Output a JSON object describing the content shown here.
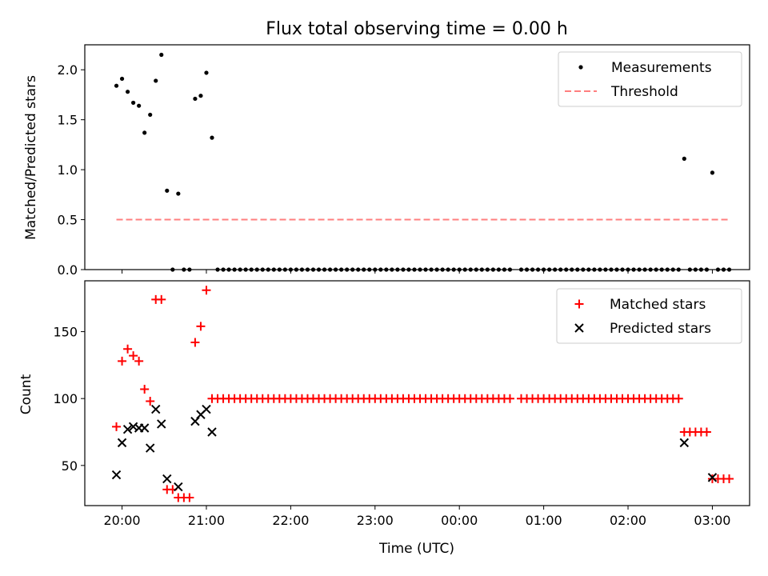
{
  "chart_data": [
    {
      "type": "scatter",
      "title": "Flux total observing time = 0.00 h",
      "xlabel": "",
      "ylabel": "Matched/Predicted stars",
      "ylim": [
        0,
        2.25
      ],
      "yticks": [
        "0.0",
        "0.5",
        "1.0",
        "1.5",
        "2.0"
      ],
      "legend_position": "top-right",
      "series": [
        {
          "name": "Measurements",
          "kind": "dot",
          "color": "#000000",
          "points": [
            [
              -4,
              1.84
            ],
            [
              0,
              1.91
            ],
            [
              4,
              1.78
            ],
            [
              8,
              1.67
            ],
            [
              12,
              1.64
            ],
            [
              16,
              1.37
            ],
            [
              20,
              1.55
            ],
            [
              24,
              1.89
            ],
            [
              28,
              2.15
            ],
            [
              32,
              0.79
            ],
            [
              36,
              0.0
            ],
            [
              40,
              0.76
            ],
            [
              44,
              0.0
            ],
            [
              48,
              0.0
            ],
            [
              52,
              1.71
            ],
            [
              56,
              1.74
            ],
            [
              60,
              1.97
            ],
            [
              64,
              1.32
            ],
            [
              68,
              0.0
            ],
            [
              72,
              0.0
            ],
            [
              76,
              0.0
            ],
            [
              80,
              0.0
            ],
            [
              84,
              0.0
            ],
            [
              88,
              0.0
            ],
            [
              92,
              0.0
            ],
            [
              96,
              0.0
            ],
            [
              100,
              0.0
            ],
            [
              104,
              0.0
            ],
            [
              108,
              0.0
            ],
            [
              112,
              0.0
            ],
            [
              116,
              0.0
            ],
            [
              120,
              0.0
            ],
            [
              124,
              0.0
            ],
            [
              128,
              0.0
            ],
            [
              132,
              0.0
            ],
            [
              136,
              0.0
            ],
            [
              140,
              0.0
            ],
            [
              144,
              0.0
            ],
            [
              148,
              0.0
            ],
            [
              152,
              0.0
            ],
            [
              156,
              0.0
            ],
            [
              160,
              0.0
            ],
            [
              164,
              0.0
            ],
            [
              168,
              0.0
            ],
            [
              172,
              0.0
            ],
            [
              176,
              0.0
            ],
            [
              180,
              0.0
            ],
            [
              184,
              0.0
            ],
            [
              188,
              0.0
            ],
            [
              192,
              0.0
            ],
            [
              196,
              0.0
            ],
            [
              200,
              0.0
            ],
            [
              204,
              0.0
            ],
            [
              208,
              0.0
            ],
            [
              212,
              0.0
            ],
            [
              216,
              0.0
            ],
            [
              220,
              0.0
            ],
            [
              224,
              0.0
            ],
            [
              228,
              0.0
            ],
            [
              232,
              0.0
            ],
            [
              236,
              0.0
            ],
            [
              240,
              0.0
            ],
            [
              244,
              0.0
            ],
            [
              248,
              0.0
            ],
            [
              252,
              0.0
            ],
            [
              256,
              0.0
            ],
            [
              260,
              0.0
            ],
            [
              264,
              0.0
            ],
            [
              268,
              0.0
            ],
            [
              272,
              0.0
            ],
            [
              276,
              0.0
            ],
            [
              284,
              0.0
            ],
            [
              288,
              0.0
            ],
            [
              292,
              0.0
            ],
            [
              296,
              0.0
            ],
            [
              300,
              0.0
            ],
            [
              304,
              0.0
            ],
            [
              308,
              0.0
            ],
            [
              312,
              0.0
            ],
            [
              316,
              0.0
            ],
            [
              320,
              0.0
            ],
            [
              324,
              0.0
            ],
            [
              328,
              0.0
            ],
            [
              332,
              0.0
            ],
            [
              336,
              0.0
            ],
            [
              340,
              0.0
            ],
            [
              344,
              0.0
            ],
            [
              348,
              0.0
            ],
            [
              352,
              0.0
            ],
            [
              356,
              0.0
            ],
            [
              360,
              0.0
            ],
            [
              364,
              0.0
            ],
            [
              368,
              0.0
            ],
            [
              372,
              0.0
            ],
            [
              376,
              0.0
            ],
            [
              380,
              0.0
            ],
            [
              384,
              0.0
            ],
            [
              388,
              0.0
            ],
            [
              392,
              0.0
            ],
            [
              396,
              0.0
            ],
            [
              400,
              1.11
            ],
            [
              404,
              0.0
            ],
            [
              408,
              0.0
            ],
            [
              412,
              0.0
            ],
            [
              416,
              0.0
            ],
            [
              420,
              0.97
            ],
            [
              424,
              0.0
            ],
            [
              428,
              0.0
            ],
            [
              432,
              0.0
            ]
          ]
        },
        {
          "name": "Threshold",
          "kind": "dashed-line",
          "color": "#ff7f7f",
          "points": [
            [
              -4,
              0.5
            ],
            [
              432,
              0.5
            ]
          ]
        }
      ]
    },
    {
      "type": "scatter",
      "title": "",
      "xlabel": "Time (UTC)",
      "ylabel": "Count",
      "ylim": [
        20,
        188
      ],
      "yticks": [
        "50",
        "100",
        "150"
      ],
      "xticks": [
        "20:00",
        "21:00",
        "22:00",
        "23:00",
        "00:00",
        "01:00",
        "02:00",
        "03:00"
      ],
      "x_unit": "minutes after 20:00 UTC",
      "legend_position": "top-right",
      "series": [
        {
          "name": "Matched stars",
          "kind": "plus",
          "color": "#ff0000",
          "points": [
            [
              -4,
              79
            ],
            [
              0,
              128
            ],
            [
              4,
              137
            ],
            [
              8,
              132
            ],
            [
              12,
              128
            ],
            [
              16,
              107
            ],
            [
              20,
              98
            ],
            [
              24,
              174
            ],
            [
              28,
              174
            ],
            [
              32,
              32
            ],
            [
              36,
              32
            ],
            [
              40,
              26
            ],
            [
              44,
              26
            ],
            [
              48,
              26
            ],
            [
              52,
              142
            ],
            [
              56,
              154
            ],
            [
              60,
              181
            ],
            [
              64,
              100
            ],
            [
              68,
              100
            ],
            [
              72,
              100
            ],
            [
              76,
              100
            ],
            [
              80,
              100
            ],
            [
              84,
              100
            ],
            [
              88,
              100
            ],
            [
              92,
              100
            ],
            [
              96,
              100
            ],
            [
              100,
              100
            ],
            [
              104,
              100
            ],
            [
              108,
              100
            ],
            [
              112,
              100
            ],
            [
              116,
              100
            ],
            [
              120,
              100
            ],
            [
              124,
              100
            ],
            [
              128,
              100
            ],
            [
              132,
              100
            ],
            [
              136,
              100
            ],
            [
              140,
              100
            ],
            [
              144,
              100
            ],
            [
              148,
              100
            ],
            [
              152,
              100
            ],
            [
              156,
              100
            ],
            [
              160,
              100
            ],
            [
              164,
              100
            ],
            [
              168,
              100
            ],
            [
              172,
              100
            ],
            [
              176,
              100
            ],
            [
              180,
              100
            ],
            [
              184,
              100
            ],
            [
              188,
              100
            ],
            [
              192,
              100
            ],
            [
              196,
              100
            ],
            [
              200,
              100
            ],
            [
              204,
              100
            ],
            [
              208,
              100
            ],
            [
              212,
              100
            ],
            [
              216,
              100
            ],
            [
              220,
              100
            ],
            [
              224,
              100
            ],
            [
              228,
              100
            ],
            [
              232,
              100
            ],
            [
              236,
              100
            ],
            [
              240,
              100
            ],
            [
              244,
              100
            ],
            [
              248,
              100
            ],
            [
              252,
              100
            ],
            [
              256,
              100
            ],
            [
              260,
              100
            ],
            [
              264,
              100
            ],
            [
              268,
              100
            ],
            [
              272,
              100
            ],
            [
              276,
              100
            ],
            [
              284,
              100
            ],
            [
              288,
              100
            ],
            [
              292,
              100
            ],
            [
              296,
              100
            ],
            [
              300,
              100
            ],
            [
              304,
              100
            ],
            [
              308,
              100
            ],
            [
              312,
              100
            ],
            [
              316,
              100
            ],
            [
              320,
              100
            ],
            [
              324,
              100
            ],
            [
              328,
              100
            ],
            [
              332,
              100
            ],
            [
              336,
              100
            ],
            [
              340,
              100
            ],
            [
              344,
              100
            ],
            [
              348,
              100
            ],
            [
              352,
              100
            ],
            [
              356,
              100
            ],
            [
              360,
              100
            ],
            [
              364,
              100
            ],
            [
              368,
              100
            ],
            [
              372,
              100
            ],
            [
              376,
              100
            ],
            [
              380,
              100
            ],
            [
              384,
              100
            ],
            [
              388,
              100
            ],
            [
              392,
              100
            ],
            [
              396,
              100
            ],
            [
              400,
              75
            ],
            [
              404,
              75
            ],
            [
              408,
              75
            ],
            [
              412,
              75
            ],
            [
              416,
              75
            ],
            [
              420,
              40
            ],
            [
              424,
              40
            ],
            [
              428,
              40
            ],
            [
              432,
              40
            ]
          ]
        },
        {
          "name": "Predicted stars",
          "kind": "x",
          "color": "#000000",
          "points": [
            [
              -4,
              43
            ],
            [
              0,
              67
            ],
            [
              4,
              77
            ],
            [
              8,
              79
            ],
            [
              12,
              78
            ],
            [
              16,
              78
            ],
            [
              20,
              63
            ],
            [
              24,
              92
            ],
            [
              28,
              81
            ],
            [
              32,
              40
            ],
            [
              40,
              34
            ],
            [
              52,
              83
            ],
            [
              56,
              88
            ],
            [
              60,
              92
            ],
            [
              64,
              75
            ],
            [
              400,
              67
            ],
            [
              420,
              41
            ]
          ]
        }
      ]
    }
  ]
}
